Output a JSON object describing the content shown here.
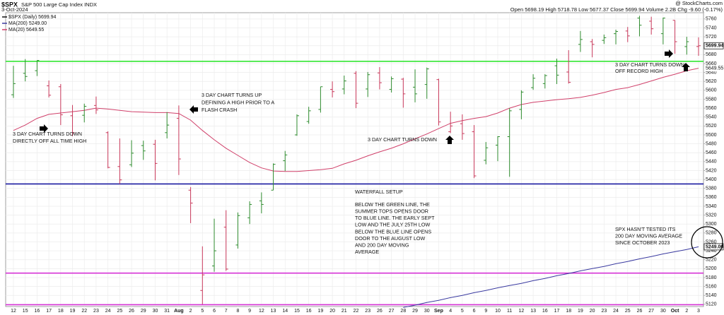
{
  "header": {
    "symbol": "$SPX",
    "name": "S&P 500 Large Cap Index INDX",
    "date": "3-Oct-2024",
    "source": "@ StockCharts.com",
    "quote": "Open 5698.19  High 5718.78  Low 5677.37  Close 5699.94  Volume 2.2B  Chg -9.60 (-0.17%)"
  },
  "chart_data": {
    "type": "ohlc",
    "legend": [
      {
        "name": "$SPX (Daily)",
        "value_label": "5699.94",
        "color": "#111111"
      },
      {
        "name": "MA(200)",
        "value_label": "5249.00",
        "color": "#3a3aa0"
      },
      {
        "name": "MA(20)",
        "value_label": "5649.55",
        "color": "#d0406a"
      }
    ],
    "categories": [
      "12",
      "15",
      "16",
      "17",
      "18",
      "19",
      "22",
      "23",
      "24",
      "25",
      "26",
      "29",
      "30",
      "31",
      "Aug",
      "2",
      "5",
      "6",
      "7",
      "8",
      "9",
      "12",
      "13",
      "14",
      "15",
      "16",
      "19",
      "20",
      "21",
      "22",
      "23",
      "26",
      "27",
      "28",
      "29",
      "30",
      "Sep",
      "4",
      "5",
      "6",
      "9",
      "10",
      "11",
      "12",
      "13",
      "16",
      "17",
      "18",
      "19",
      "20",
      "23",
      "24",
      "25",
      "26",
      "27",
      "30",
      "Oct",
      "2",
      "3"
    ],
    "open": [
      5590,
      5638,
      5644,
      5610,
      5608,
      5543,
      5544,
      5566,
      5505,
      5429,
      5433,
      5476,
      5479,
      5505,
      5537,
      5376,
      5151,
      5206,
      5293,
      5253,
      5314,
      5352,
      5376,
      5442,
      5500,
      5530,
      5557,
      5602,
      5603,
      5638,
      5603,
      5639,
      5602,
      5625,
      5607,
      5613,
      5624,
      5507,
      5525,
      5507,
      5443,
      5477,
      5496,
      5557,
      5606,
      5615,
      5655,
      5641,
      5703,
      5709,
      5712,
      5727,
      5733,
      5762,
      5755,
      5727,
      5757,
      5698,
      5698.19
    ],
    "high": [
      5655,
      5670,
      5667,
      5622,
      5614,
      5567,
      5570,
      5586,
      5508,
      5492,
      5488,
      5487,
      5489,
      5551,
      5566,
      5383,
      5250,
      5312,
      5331,
      5326,
      5351,
      5371,
      5436,
      5464,
      5546,
      5563,
      5608,
      5620,
      5633,
      5643,
      5641,
      5652,
      5631,
      5628,
      5647,
      5651,
      5626,
      5552,
      5546,
      5522,
      5484,
      5497,
      5560,
      5600,
      5636,
      5636,
      5671,
      5690,
      5733,
      5715,
      5725,
      5736,
      5742,
      5767,
      5765,
      5763,
      5757,
      5720,
      5718.78
    ],
    "low": [
      5583,
      5620,
      5632,
      5584,
      5522,
      5497,
      5528,
      5547,
      5425,
      5390,
      5428,
      5444,
      5398,
      5492,
      5410,
      5302,
      5120,
      5193,
      5195,
      5245,
      5300,
      5324,
      5376,
      5419,
      5498,
      5525,
      5550,
      5584,
      5591,
      5560,
      5585,
      5602,
      5595,
      5561,
      5573,
      5581,
      5521,
      5504,
      5489,
      5403,
      5434,
      5441,
      5406,
      5535,
      5601,
      5604,
      5614,
      5615,
      5686,
      5674,
      5704,
      5703,
      5708,
      5721,
      5725,
      5703,
      5682,
      5680,
      5677.37
    ],
    "close": [
      5615,
      5631,
      5667,
      5589,
      5545,
      5505,
      5564,
      5556,
      5427,
      5399,
      5459,
      5464,
      5436,
      5522,
      5446,
      5347,
      5186,
      5240,
      5199,
      5319,
      5344,
      5344,
      5434,
      5455,
      5543,
      5554,
      5608,
      5597,
      5621,
      5571,
      5635,
      5617,
      5626,
      5592,
      5592,
      5648,
      5529,
      5520,
      5503,
      5408,
      5471,
      5496,
      5554,
      5596,
      5627,
      5633,
      5634,
      5618,
      5714,
      5703,
      5718,
      5732,
      5722,
      5746,
      5738,
      5762,
      5709,
      5709,
      5699.94
    ],
    "up_color": "#2e8b2e",
    "down_color": "#c8385a",
    "series": [
      {
        "name": "MA(20)",
        "color": "#d0406a",
        "values": [
          5510,
          5522,
          5537,
          5546,
          5549,
          5552,
          5555,
          5560,
          5558,
          5555,
          5552,
          5551,
          5550,
          5550,
          5548,
          5533,
          5510,
          5489,
          5470,
          5454,
          5438,
          5426,
          5419,
          5418,
          5418,
          5420,
          5422,
          5425,
          5435,
          5443,
          5453,
          5462,
          5470,
          5480,
          5491,
          5502,
          5514,
          5526,
          5532,
          5537,
          5541,
          5549,
          5560,
          5568,
          5573,
          5576,
          5579,
          5581,
          5584,
          5589,
          5595,
          5602,
          5606,
          5613,
          5621,
          5629,
          5636,
          5644,
          5649.55
        ]
      },
      {
        "name": "MA(200)",
        "color": "#3a3aa0",
        "values": [
          null,
          null,
          null,
          null,
          null,
          null,
          null,
          null,
          null,
          null,
          null,
          null,
          null,
          null,
          null,
          null,
          null,
          null,
          null,
          null,
          null,
          null,
          null,
          null,
          null,
          null,
          null,
          null,
          null,
          null,
          null,
          null,
          null,
          5113,
          5118,
          5124,
          5129,
          5135,
          5140,
          5146,
          5151,
          5157,
          5162,
          5167,
          5173,
          5178,
          5184,
          5189,
          5195,
          5200,
          5205,
          5211,
          5216,
          5222,
          5227,
          5233,
          5238,
          5243,
          5249
        ]
      }
    ],
    "levels": [
      {
        "value": 5665,
        "color": "#33e633"
      },
      {
        "value": 5390,
        "color": "#1a1aa0"
      },
      {
        "value": 5190,
        "color": "#d633d6"
      },
      {
        "value": 5119,
        "color": "#d633d6"
      }
    ],
    "ylim": [
      5115,
      5774
    ],
    "yticks": [
      5120,
      5140,
      5160,
      5180,
      5200,
      5220,
      5240,
      5260,
      5280,
      5300,
      5320,
      5340,
      5360,
      5380,
      5400,
      5420,
      5440,
      5460,
      5480,
      5500,
      5520,
      5540,
      5560,
      5580,
      5600,
      5620,
      5640,
      5660,
      5680,
      5700,
      5720,
      5740,
      5760
    ],
    "grid": true,
    "annotations": [
      {
        "lines": [
          "3 DAY CHART TURNS DOWN",
          "DIRECTLY OFF ALL TIME HIGH"
        ]
      },
      {
        "lines": [
          "3 DAY CHART TURNS UP",
          "DEFINING A HIGH PRIOR TO A",
          "FLASH CRASH"
        ]
      },
      {
        "lines": [
          "3 DAY CHART TURNS DOWN"
        ]
      },
      {
        "lines": [
          "3 DAY CHART TURNS DOWN",
          "OFF RECORD HIGH"
        ]
      },
      {
        "lines": [
          "WATERFALL SETUP"
        ]
      },
      {
        "lines": [
          "BELOW THE GREEN LINE, THE",
          "SUMMER TOPS OPENS DOOR",
          "TO BLUE LINE. THE EARLY SEPT",
          "LOW AND THE JULY 25TH LOW",
          "BELOW THE BLUE LINE OPENS",
          "DOOR TO THE AUGUST LOW",
          "AND 200 DAY MOVING",
          "AVERAGE"
        ]
      },
      {
        "lines": [
          "SPX HASN'T TESTED ITS",
          "200 DAY MOVING AVERAGE",
          "SINCE OCTOBER 2023"
        ]
      }
    ]
  }
}
